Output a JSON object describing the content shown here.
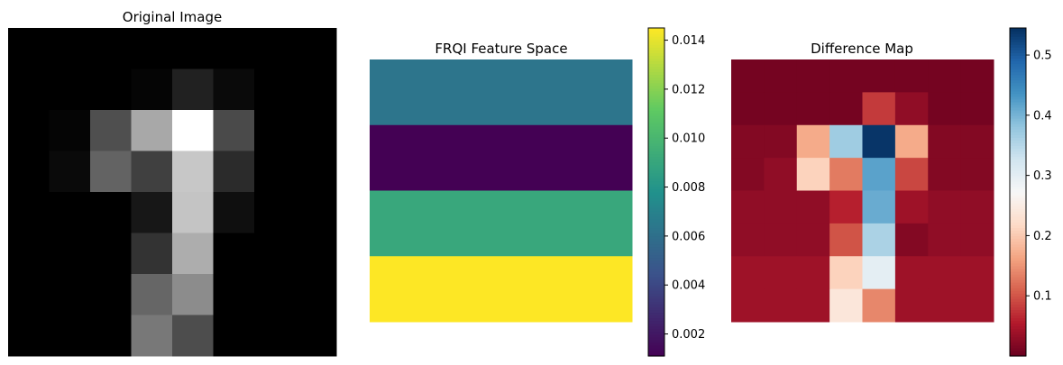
{
  "chart_data": [
    {
      "type": "heatmap",
      "title": "Original Image",
      "colormap": "gray",
      "rows": 8,
      "cols": 8,
      "values": [
        [
          0,
          0,
          0,
          0,
          0,
          0,
          0,
          0
        ],
        [
          0,
          0,
          0,
          0.02,
          0.13,
          0.04,
          0,
          0
        ],
        [
          0,
          0.02,
          0.31,
          0.66,
          1.0,
          0.29,
          0,
          0
        ],
        [
          0,
          0.04,
          0.39,
          0.25,
          0.78,
          0.17,
          0,
          0
        ],
        [
          0,
          0,
          0,
          0.09,
          0.77,
          0.06,
          0,
          0
        ],
        [
          0,
          0,
          0,
          0.2,
          0.68,
          0,
          0,
          0
        ],
        [
          0,
          0,
          0,
          0.4,
          0.55,
          0,
          0,
          0
        ],
        [
          0,
          0,
          0,
          0.47,
          0.3,
          0,
          0,
          0
        ]
      ]
    },
    {
      "type": "heatmap",
      "title": "FRQI Feature Space",
      "colormap": "viridis",
      "rows": 4,
      "cols": 1,
      "values": [
        [
          0.0063
        ],
        [
          0.0011
        ],
        [
          0.0091
        ],
        [
          0.0145
        ]
      ],
      "colorbar": {
        "range": [
          0.0011,
          0.0145
        ],
        "ticks": [
          "0.002",
          "0.004",
          "0.006",
          "0.008",
          "0.010",
          "0.012",
          "0.014"
        ],
        "tick_values": [
          0.002,
          0.004,
          0.006,
          0.008,
          0.01,
          0.012,
          0.014
        ]
      }
    },
    {
      "type": "heatmap",
      "title": "Difference Map",
      "colormap": "RdBu",
      "rows": 8,
      "cols": 8,
      "values": [
        [
          0.01,
          0.01,
          0.01,
          0.01,
          0.01,
          0.01,
          0.01,
          0.01
        ],
        [
          0.01,
          0.01,
          0.01,
          0.01,
          0.08,
          0.03,
          0.01,
          0.01
        ],
        [
          0.02,
          0.02,
          0.17,
          0.37,
          0.54,
          0.17,
          0.02,
          0.02
        ],
        [
          0.02,
          0.03,
          0.21,
          0.13,
          0.42,
          0.09,
          0.02,
          0.02
        ],
        [
          0.03,
          0.03,
          0.03,
          0.06,
          0.41,
          0.04,
          0.03,
          0.03
        ],
        [
          0.03,
          0.03,
          0.03,
          0.1,
          0.36,
          0.02,
          0.03,
          0.03
        ],
        [
          0.04,
          0.04,
          0.04,
          0.21,
          0.3,
          0.04,
          0.04,
          0.04
        ],
        [
          0.04,
          0.04,
          0.04,
          0.24,
          0.14,
          0.04,
          0.04,
          0.04
        ]
      ],
      "colorbar": {
        "range": [
          0.0,
          0.545
        ],
        "ticks": [
          "0.1",
          "0.2",
          "0.3",
          "0.4",
          "0.5"
        ],
        "tick_values": [
          0.1,
          0.2,
          0.3,
          0.4,
          0.5
        ]
      }
    }
  ]
}
